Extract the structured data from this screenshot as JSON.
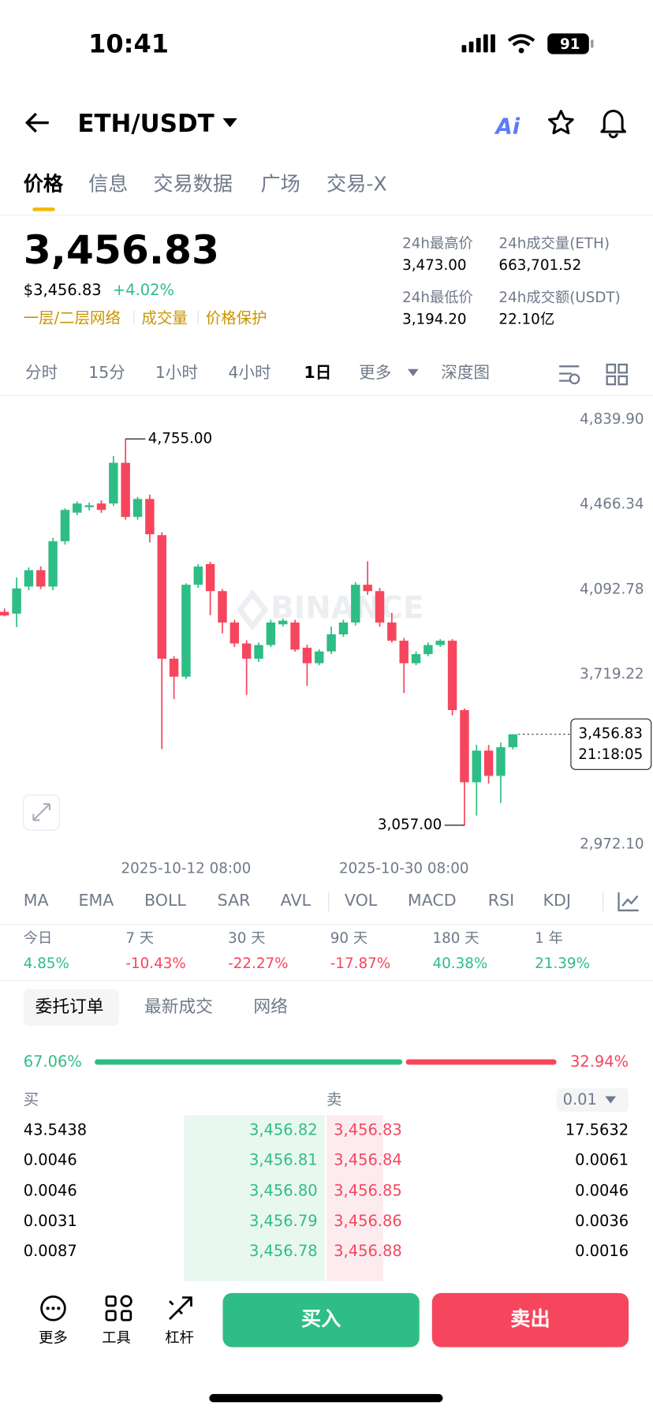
{
  "status": {
    "time": "10:41",
    "battery": "91"
  },
  "header": {
    "pair": "ETH/USDT",
    "ai": "Ai"
  },
  "tabs": [
    "价格",
    "信息",
    "交易数据",
    "广场",
    "交易-X"
  ],
  "price": {
    "last": "3,456.83",
    "usd": "$3,456.83",
    "change": "+4.02%",
    "tags": [
      "一层/二层网络",
      "成交量",
      "价格保护"
    ]
  },
  "stats": [
    {
      "label": "24h最高价",
      "value": "3,473.00"
    },
    {
      "label": "24h成交量(ETH)",
      "value": "663,701.52"
    },
    {
      "label": "24h最低价",
      "value": "3,194.20"
    },
    {
      "label": "24h成交额(USDT)",
      "value": "22.10亿"
    }
  ],
  "intervals": [
    "分时",
    "15分",
    "1小时",
    "4小时",
    "1日",
    "更多",
    "深度图"
  ],
  "chart_data": {
    "type": "candlestick",
    "watermark": "BINANCE",
    "ylim": [
      2972.1,
      4839.9
    ],
    "yticks": [
      {
        "value": 4839.9,
        "label": "4,839.90"
      },
      {
        "value": 4466.34,
        "label": "4,466.34"
      },
      {
        "value": 4092.78,
        "label": "4,092.78"
      },
      {
        "value": 3719.22,
        "label": "3,719.22"
      },
      {
        "value": 2972.1,
        "label": "2,972.10"
      }
    ],
    "categories": [
      null,
      null,
      null,
      null,
      null,
      null,
      null,
      null,
      null,
      null,
      null,
      null,
      null,
      null,
      null,
      "2025-10-12 08:00",
      null,
      null,
      null,
      null,
      null,
      null,
      null,
      null,
      null,
      null,
      null,
      null,
      null,
      null,
      null,
      null,
      null,
      "2025-10-30 08:00",
      null,
      null,
      null,
      null,
      null,
      null,
      null,
      null,
      null
    ],
    "open": [
      3995,
      3987,
      4106,
      4178,
      4106,
      4305,
      4431,
      4455,
      4471,
      4471,
      4650,
      4412,
      4491,
      4332,
      3789,
      3710,
      4114,
      4205,
      4086,
      3948,
      3856,
      3789,
      3849,
      3940,
      3948,
      3837,
      3769,
      3821,
      3896,
      3948,
      4114,
      4086,
      3948,
      3868,
      3769,
      3809,
      3849,
      3868,
      3563,
      3246,
      3385,
      3274,
      3400
    ],
    "high": [
      4010,
      4146,
      4190,
      4195,
      4320,
      4450,
      4480,
      4475,
      4485,
      4680,
      4755,
      4500,
      4510,
      4345,
      3800,
      4120,
      4205,
      4215,
      4095,
      3960,
      3870,
      3860,
      3960,
      3965,
      3960,
      3850,
      3830,
      3930,
      3960,
      4125,
      4217,
      4100,
      3990,
      3880,
      3820,
      3860,
      3875,
      3875,
      3570,
      3410,
      3410,
      3420,
      3440
    ],
    "low": [
      3975,
      3928,
      4090,
      4095,
      4090,
      4290,
      4420,
      4440,
      4430,
      4460,
      4400,
      4400,
      4300,
      3392,
      3611,
      3700,
      4100,
      3980,
      3900,
      3840,
      3630,
      3775,
      3840,
      3930,
      3820,
      3670,
      3760,
      3810,
      3885,
      3935,
      4070,
      3930,
      3860,
      3638,
      3760,
      3800,
      3840,
      3540,
      3057,
      3100,
      3240,
      3155,
      3390
    ],
    "close": [
      3979,
      4098,
      4178,
      4106,
      4305,
      4443,
      4471,
      4463,
      4443,
      4650,
      4412,
      4491,
      4336,
      3789,
      3710,
      4114,
      4194,
      4086,
      3948,
      3856,
      3789,
      3849,
      3948,
      3956,
      3829,
      3769,
      3821,
      3896,
      3948,
      4114,
      4086,
      3948,
      3868,
      3769,
      3809,
      3849,
      3868,
      3563,
      3246,
      3385,
      3274,
      3400,
      3456.83
    ],
    "up_color": "#2ebd85",
    "down_color": "#f6465d",
    "high_label": {
      "value": 4755,
      "label": "4,755.00"
    },
    "low_label": {
      "value": 3057,
      "label": "3,057.00"
    },
    "last_price_label": "3,456.83",
    "countdown": "21:18:05"
  },
  "indicators": [
    "MA",
    "EMA",
    "BOLL",
    "SAR",
    "AVL",
    "VOL",
    "MACD",
    "RSI",
    "KDJ"
  ],
  "performance": [
    {
      "label": "今日",
      "value": "4.85%"
    },
    {
      "label": "7 天",
      "value": "-10.43%"
    },
    {
      "label": "30 天",
      "value": "-22.27%"
    },
    {
      "label": "90 天",
      "value": "-17.87%"
    },
    {
      "label": "180 天",
      "value": "40.38%"
    },
    {
      "label": "1 年",
      "value": "21.39%"
    }
  ],
  "orderbook": {
    "tabs": [
      "委托订单",
      "最新成交",
      "网络"
    ],
    "buy_ratio": "67.06%",
    "sell_ratio": "32.94%",
    "buy_header": "买",
    "sell_header": "卖",
    "precision": "0.01",
    "rows": [
      [
        "43.5438",
        "3,456.82",
        "3,456.83",
        "17.5632"
      ],
      [
        "0.0046",
        "3,456.81",
        "3,456.84",
        "0.0061"
      ],
      [
        "0.0046",
        "3,456.80",
        "3,456.85",
        "0.0046"
      ],
      [
        "0.0031",
        "3,456.79",
        "3,456.86",
        "0.0036"
      ],
      [
        "0.0087",
        "3,456.78",
        "3,456.88",
        "0.0016"
      ]
    ]
  },
  "bottom": {
    "more": "更多",
    "tools": "工具",
    "leverage": "杠杆",
    "buy": "买入",
    "sell": "卖出"
  }
}
